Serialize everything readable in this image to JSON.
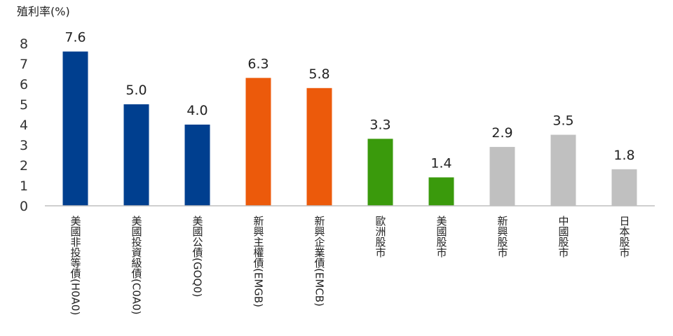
{
  "chart_data": {
    "type": "bar",
    "ylabel": "殖利率(%)",
    "ylim": [
      0,
      8
    ],
    "yticks": [
      0,
      1,
      2,
      3,
      4,
      5,
      6,
      7,
      8
    ],
    "grid": false,
    "categories": [
      "美國非投等債(H0A0)",
      "美國投資級債(C0A0)",
      "美國公債(GOQ0)",
      "新興主權債(EMGB)",
      "新興企業債(EMCB)",
      "歐洲股市",
      "美國股市",
      "新興股市",
      "中國股市",
      "日本股市"
    ],
    "values": [
      7.6,
      5.0,
      4.0,
      6.3,
      5.8,
      3.3,
      1.4,
      2.9,
      3.5,
      1.8
    ],
    "value_labels": [
      "7.6",
      "5.0",
      "4.0",
      "6.3",
      "5.8",
      "3.3",
      "1.4",
      "2.9",
      "3.5",
      "1.8"
    ],
    "bar_colors": [
      "#003f8f",
      "#003f8f",
      "#003f8f",
      "#ec5a0b",
      "#ec5a0b",
      "#3a9a0c",
      "#3a9a0c",
      "#c0c0c0",
      "#c0c0c0",
      "#c0c0c0"
    ]
  }
}
